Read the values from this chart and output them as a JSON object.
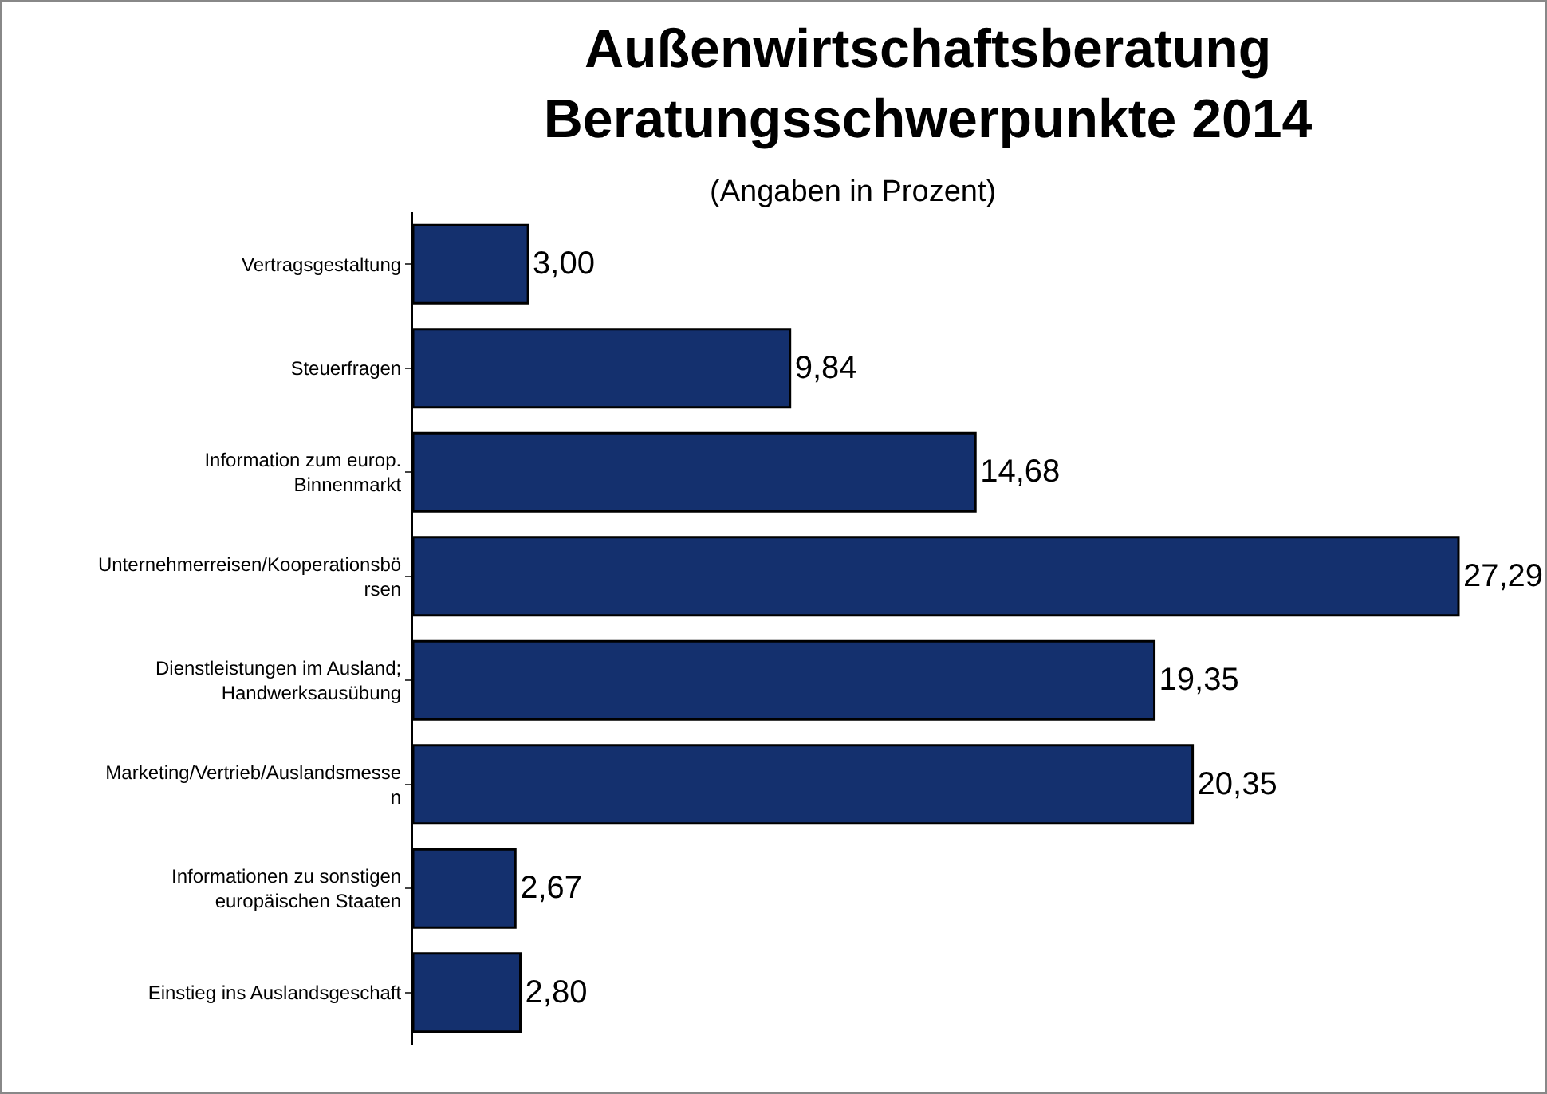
{
  "chart_data": {
    "type": "bar",
    "orientation": "horizontal",
    "title": "Außenwirtschaftsberatung Beratungsschwerpunkte 2014",
    "subtitle": "(Angaben in Prozent)",
    "categories": [
      "Vertragsgestaltung",
      "Steuerfragen",
      "Information zum europ. Binnenmarkt",
      "Unternehmerreisen/Kooperationsbörsen",
      "Dienstleistungen im Ausland; Handwerksausübung",
      "Marketing/Vertrieb/Auslandsmessen",
      "Informationen zu sonstigen europäischen Staaten",
      "Einstieg ins Auslandsgeschaft"
    ],
    "values": [
      3.0,
      9.84,
      14.68,
      27.29,
      19.35,
      20.35,
      2.67,
      2.8
    ],
    "value_labels": [
      "3,00",
      "9,84",
      "14,68",
      "27,29",
      "19,35",
      "20,35",
      "2,67",
      "2,80"
    ],
    "color": "#14306e"
  }
}
